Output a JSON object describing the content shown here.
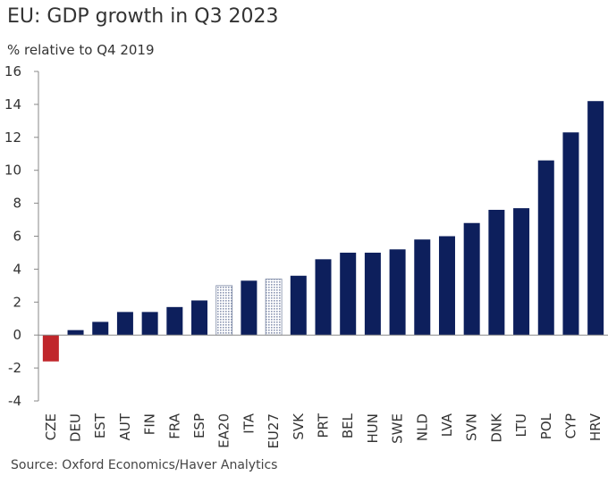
{
  "title": "EU: GDP growth in Q3 2023",
  "subtitle": "% relative to Q4 2019",
  "source": "Source: Oxford Economics/Haver Analytics",
  "colors": {
    "primary": "#0d1f5c",
    "negative": "#c0262b",
    "aggregate_fill": "#c9cfdc",
    "aggregate_stroke": "#7e8aa6",
    "axis": "#888888"
  },
  "chart_data": {
    "type": "bar",
    "title": "EU: GDP growth in Q3 2023",
    "subtitle": "% relative to Q4 2019",
    "xlabel": "",
    "ylabel": "",
    "ylim": [
      -4,
      16
    ],
    "yticks": [
      -4,
      -2,
      0,
      2,
      4,
      6,
      8,
      10,
      12,
      14,
      16
    ],
    "grid": false,
    "categories": [
      "CZE",
      "DEU",
      "EST",
      "AUT",
      "FIN",
      "FRA",
      "ESP",
      "EA20",
      "ITA",
      "EU27",
      "SVK",
      "PRT",
      "BEL",
      "HUN",
      "SWE",
      "NLD",
      "LVA",
      "SVN",
      "DNK",
      "LTU",
      "POL",
      "CYP",
      "HRV"
    ],
    "values": [
      -1.6,
      0.3,
      0.8,
      1.4,
      1.4,
      1.7,
      2.1,
      3.0,
      3.3,
      3.4,
      3.6,
      4.6,
      5.0,
      5.0,
      5.2,
      5.8,
      6.0,
      6.8,
      7.6,
      7.7,
      10.6,
      12.3,
      14.2
    ],
    "aggregates": [
      "EA20",
      "EU27"
    ]
  }
}
